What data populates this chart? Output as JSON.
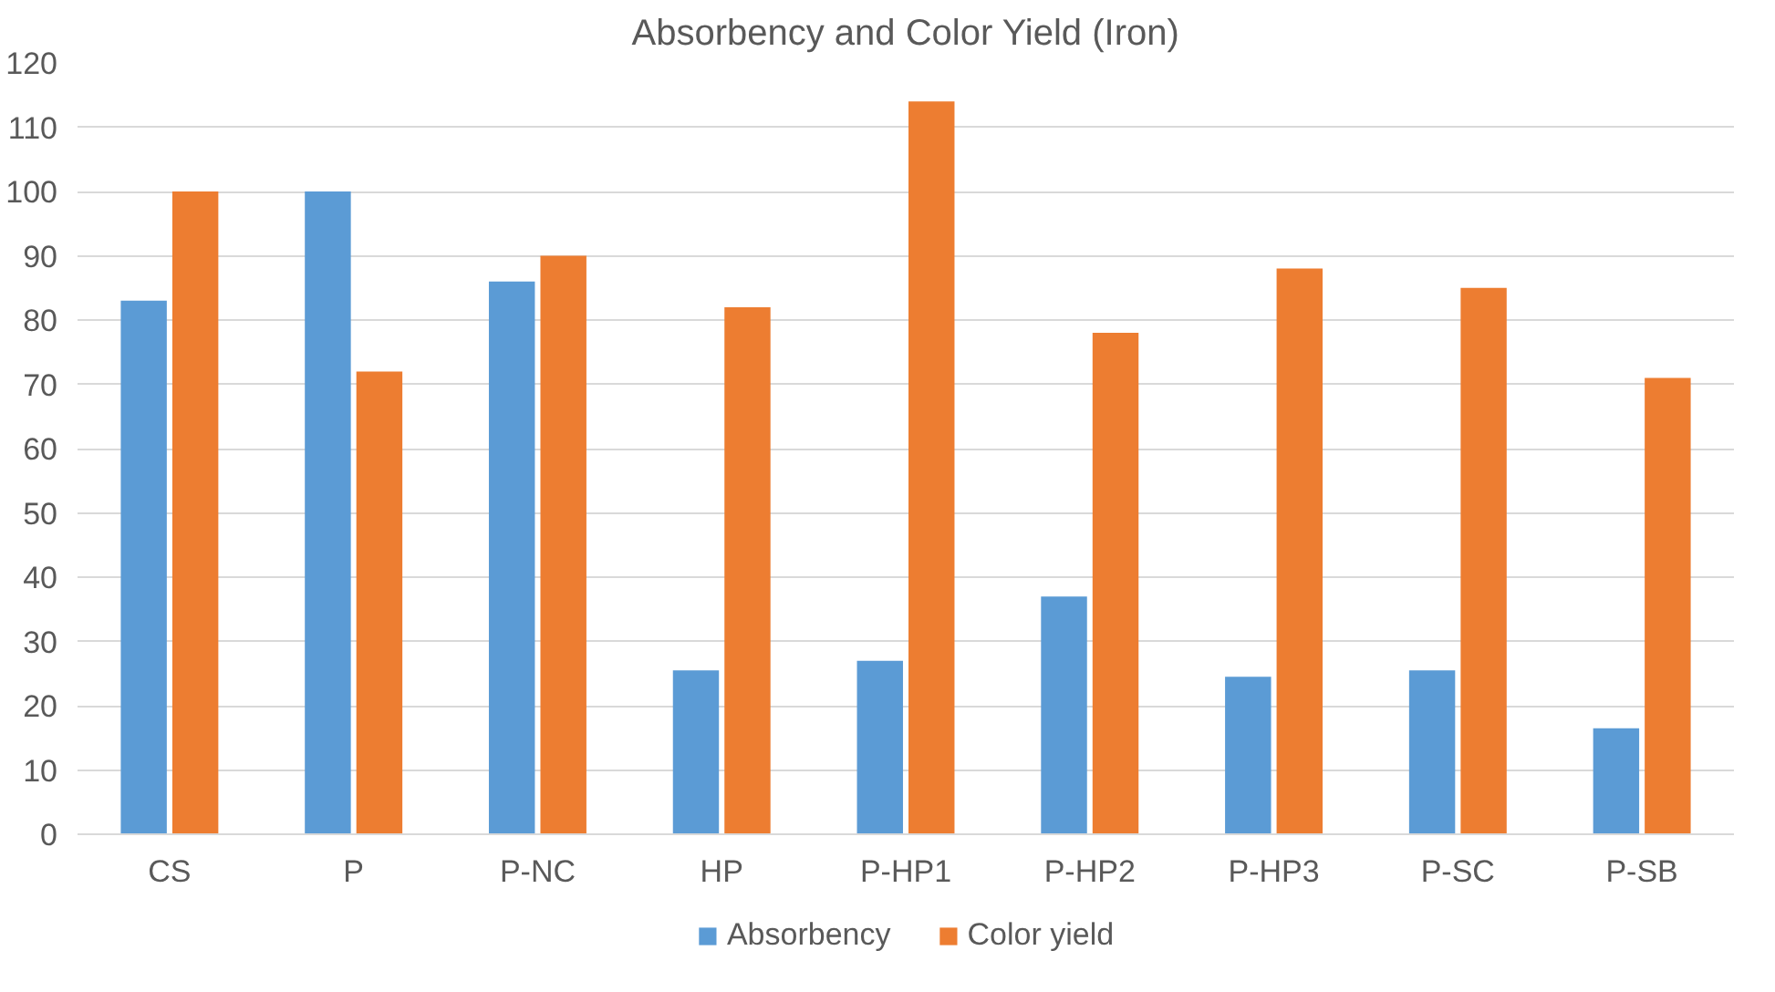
{
  "chart_data": {
    "type": "bar",
    "title": "Absorbency and Color Yield (Iron)",
    "categories": [
      "CS",
      "P",
      "P-NC",
      "HP",
      "P-HP1",
      "P-HP2",
      "P-HP3",
      "P-SC",
      "P-SB"
    ],
    "series": [
      {
        "name": "Absorbency",
        "color": "#5b9bd5",
        "values": [
          83,
          100,
          86,
          25.5,
          27,
          37,
          24.5,
          25.5,
          16.5
        ]
      },
      {
        "name": "Color yield",
        "color": "#ed7d31",
        "values": [
          100,
          72,
          90,
          82,
          114,
          78,
          88,
          85,
          71
        ]
      }
    ],
    "ylim": [
      0,
      120
    ],
    "yticks": [
      0,
      10,
      20,
      30,
      40,
      50,
      60,
      70,
      80,
      90,
      100,
      110,
      120
    ],
    "grid": "y",
    "legend": "bottom"
  }
}
